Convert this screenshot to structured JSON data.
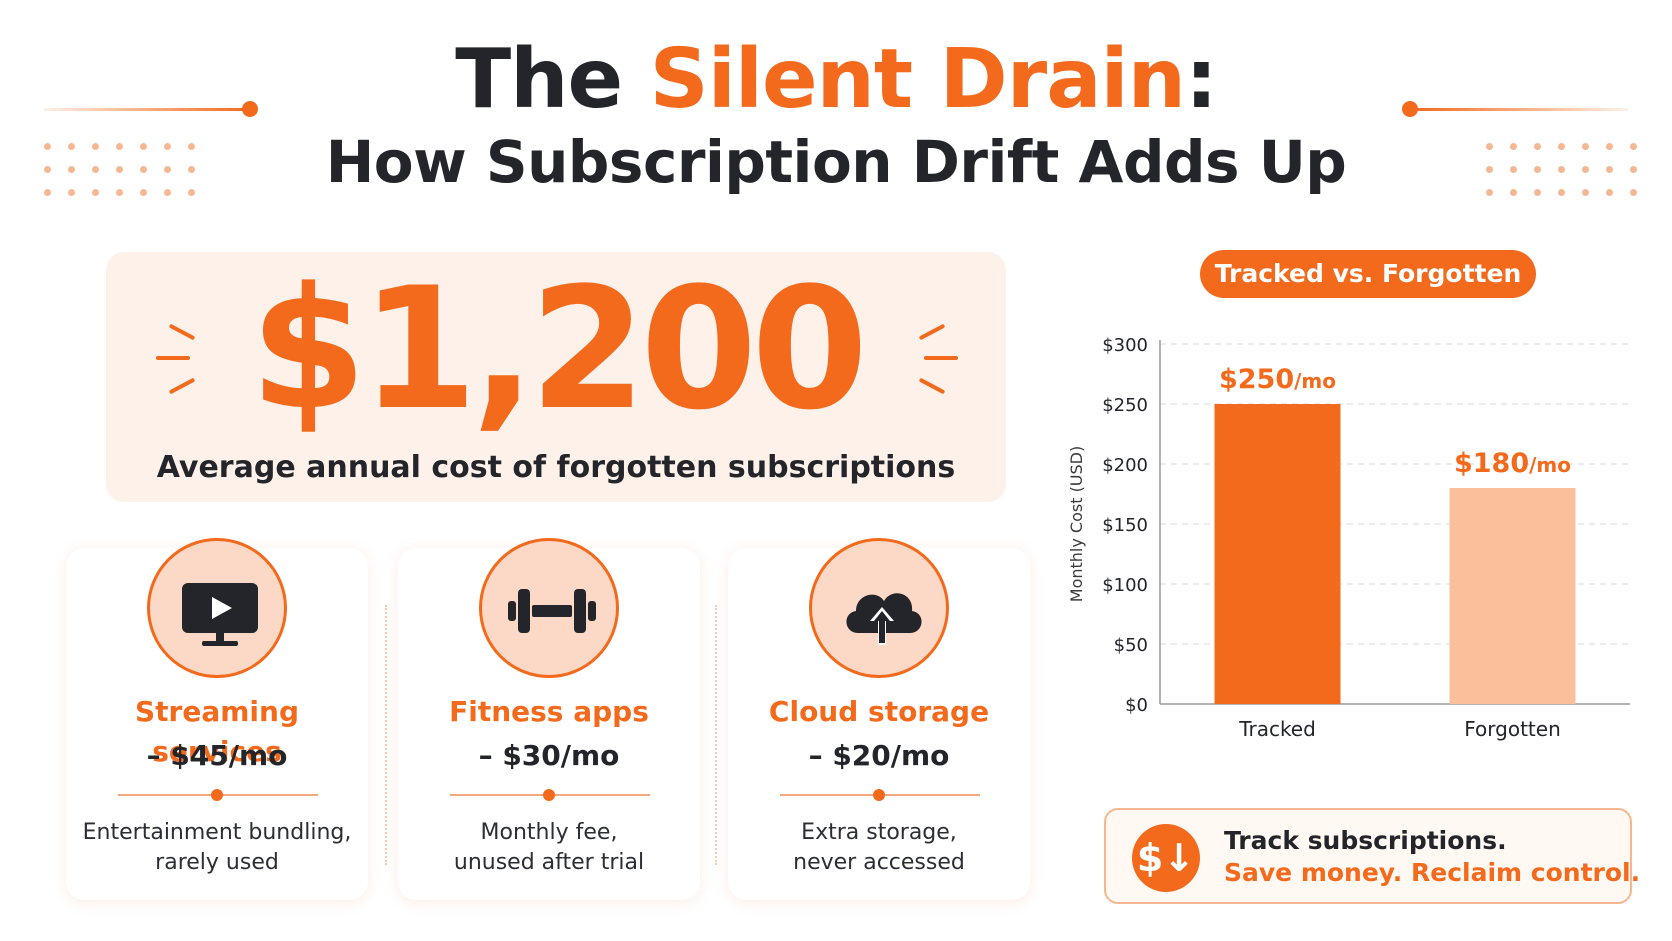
{
  "header": {
    "title_prefix": "The ",
    "title_accent": "Silent Drain",
    "title_suffix": ":",
    "subtitle": "How Subscription Drift Adds Up"
  },
  "hero": {
    "value": "$1,200",
    "caption": "Average annual cost of forgotten subscriptions"
  },
  "cards": [
    {
      "name": "Streaming services",
      "price": "– $45/mo",
      "desc_line1": "Entertainment bundling,",
      "desc_line2": "rarely used",
      "icon": "tv-play-icon"
    },
    {
      "name": "Fitness apps",
      "price": "– $30/mo",
      "desc_line1": "Monthly fee,",
      "desc_line2": "unused after trial",
      "icon": "dumbbell-icon"
    },
    {
      "name": "Cloud storage",
      "price": "– $20/mo",
      "desc_line1": "Extra storage,",
      "desc_line2": "never accessed",
      "icon": "cloud-upload-icon"
    }
  ],
  "colors": {
    "accent": "#f46a1c",
    "accent_light": "#fbbf9b",
    "text_dark": "#23252a"
  },
  "chart_data": {
    "type": "bar",
    "title": "Tracked vs. Forgotten",
    "categories": [
      "Tracked",
      "Forgotten"
    ],
    "values": [
      250,
      180
    ],
    "data_labels": [
      {
        "amount": "$250",
        "unit": "/mo"
      },
      {
        "amount": "$180",
        "unit": "/mo"
      }
    ],
    "bar_colors": [
      "#f46a1c",
      "#fbbf9b"
    ],
    "xlabel": "",
    "ylabel": "Monthly Cost (USD)",
    "ylim": [
      0,
      300
    ],
    "yticks": [
      0,
      50,
      100,
      150,
      200,
      250,
      300
    ],
    "ytick_labels": [
      "$0",
      "$50",
      "$100",
      "$150",
      "$200",
      "$250",
      "$300"
    ],
    "grid": true,
    "legend": "none"
  },
  "cta": {
    "icon_glyph": "$↓",
    "line1": "Track subscriptions.",
    "line2": "Save money. Reclaim control."
  }
}
